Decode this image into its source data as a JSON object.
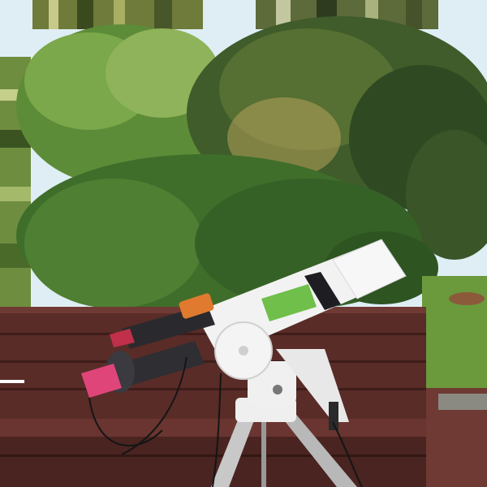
{
  "scene": {
    "telescope_label": "",
    "colors": {
      "sky": "#dfeef5",
      "tree_dark": "#2f4a22",
      "tree_mid": "#4f7a32",
      "tree_light": "#8fb35a",
      "bush": "#3f6e2a",
      "lawn": "#6a9a3c",
      "bench": "#5a2c27",
      "bench_shadow": "#3e1d1a",
      "telescope_white": "#f2f2f2",
      "dew_shield": "#1d1d22",
      "focuser_green": "#6fbf4a",
      "camera_pink": "#e0457a",
      "tripod_metal": "#c8c8c8"
    }
  }
}
